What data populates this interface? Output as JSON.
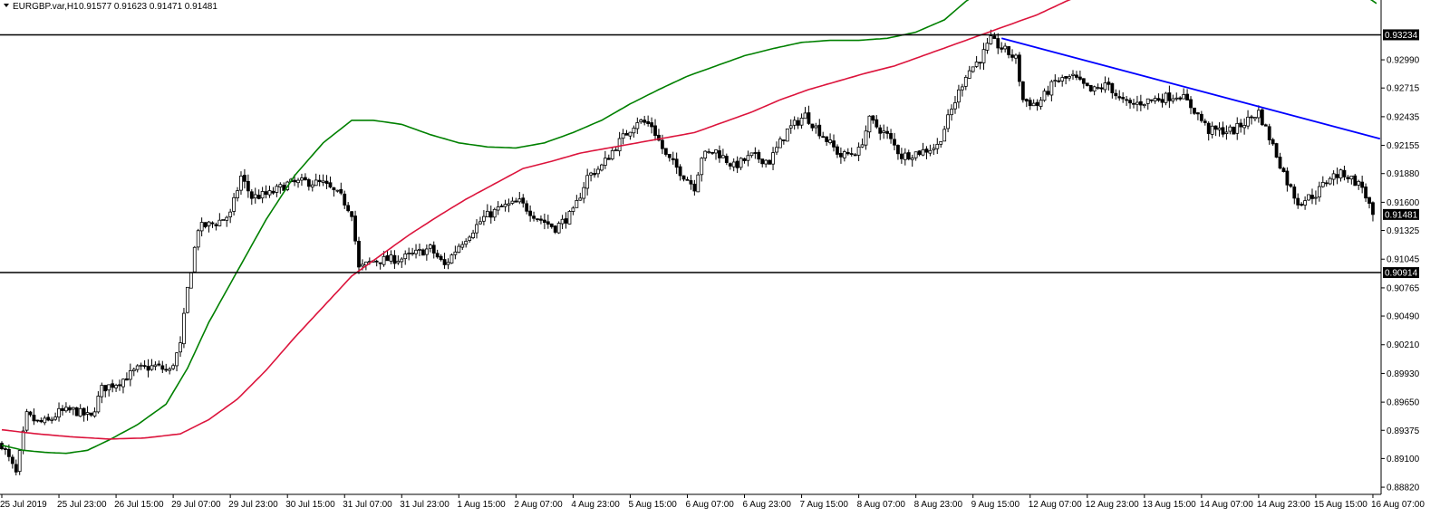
{
  "header": {
    "symbol_label": "EURGBP.var,H1",
    "ohlc_values": "0.91577 0.91623 0.91471 0.91481"
  },
  "colors": {
    "background": "#ffffff",
    "bull_candle": "#ffffff",
    "bear_candle": "#000000",
    "ma_fast": "#008000",
    "ma_slow": "#dc143c",
    "trendline": "#0000ff",
    "hline": "#000000"
  },
  "chart_data": {
    "type": "candlestick",
    "y_ticks": [
      0.8882,
      0.891,
      0.89375,
      0.8965,
      0.8993,
      0.9021,
      0.9049,
      0.90765,
      0.91045,
      0.91325,
      0.916,
      0.9188,
      0.92155,
      0.92435,
      0.92715,
      0.9299
    ],
    "y_tick_labels": [
      "0.88820",
      "0.89100",
      "0.89375",
      "0.89650",
      "0.89930",
      "0.90210",
      "0.90490",
      "0.90765",
      "0.91045",
      "0.91325",
      "0.91600",
      "0.91880",
      "0.92155",
      "0.92435",
      "0.92715",
      "0.92990"
    ],
    "ylim": [
      0.8875,
      0.9345
    ],
    "x_ticks": [
      "25 Jul 2019",
      "25 Jul 23:00",
      "26 Jul 15:00",
      "29 Jul 07:00",
      "29 Jul 23:00",
      "30 Jul 15:00",
      "31 Jul 07:00",
      "31 Jul 23:00",
      "1 Aug 15:00",
      "2 Aug 07:00",
      "4 Aug 23:00",
      "5 Aug 15:00",
      "6 Aug 07:00",
      "6 Aug 23:00",
      "7 Aug 15:00",
      "8 Aug 07:00",
      "8 Aug 23:00",
      "9 Aug 15:00",
      "12 Aug 07:00",
      "12 Aug 23:00",
      "13 Aug 15:00",
      "14 Aug 07:00",
      "14 Aug 23:00",
      "15 Aug 15:00",
      "16 Aug 07:00"
    ],
    "x_tick_index": [
      0,
      16,
      32,
      48,
      64,
      80,
      96,
      112,
      128,
      144,
      160,
      176,
      192,
      208,
      224,
      240,
      256,
      272,
      288,
      304,
      320,
      336,
      352,
      368,
      384
    ],
    "path_anchors": [
      [
        0,
        0.8924
      ],
      [
        4,
        0.8895
      ],
      [
        7,
        0.8952
      ],
      [
        10,
        0.8945
      ],
      [
        13,
        0.8946
      ],
      [
        16,
        0.8955
      ],
      [
        20,
        0.8957
      ],
      [
        25,
        0.895
      ],
      [
        28,
        0.8978
      ],
      [
        33,
        0.8985
      ],
      [
        38,
        0.8997
      ],
      [
        43,
        0.9
      ],
      [
        47,
        0.8995
      ],
      [
        50,
        0.902
      ],
      [
        52,
        0.9075
      ],
      [
        55,
        0.9135
      ],
      [
        60,
        0.914
      ],
      [
        64,
        0.9148
      ],
      [
        67,
        0.9185
      ],
      [
        70,
        0.9165
      ],
      [
        75,
        0.9168
      ],
      [
        80,
        0.9178
      ],
      [
        85,
        0.918
      ],
      [
        90,
        0.9178
      ],
      [
        95,
        0.9165
      ],
      [
        98,
        0.915
      ],
      [
        100,
        0.9095
      ],
      [
        104,
        0.9103
      ],
      [
        112,
        0.9105
      ],
      [
        120,
        0.9115
      ],
      [
        124,
        0.9098
      ],
      [
        128,
        0.9118
      ],
      [
        135,
        0.9145
      ],
      [
        140,
        0.9155
      ],
      [
        145,
        0.916
      ],
      [
        150,
        0.9145
      ],
      [
        155,
        0.9135
      ],
      [
        160,
        0.915
      ],
      [
        164,
        0.9185
      ],
      [
        168,
        0.9195
      ],
      [
        172,
        0.9215
      ],
      [
        178,
        0.924
      ],
      [
        182,
        0.9235
      ],
      [
        186,
        0.9205
      ],
      [
        190,
        0.919
      ],
      [
        194,
        0.9175
      ],
      [
        196,
        0.9205
      ],
      [
        200,
        0.921
      ],
      [
        205,
        0.9195
      ],
      [
        210,
        0.9205
      ],
      [
        215,
        0.92
      ],
      [
        220,
        0.923
      ],
      [
        225,
        0.9245
      ],
      [
        230,
        0.9225
      ],
      [
        235,
        0.9205
      ],
      [
        240,
        0.921
      ],
      [
        243,
        0.924
      ],
      [
        248,
        0.9225
      ],
      [
        252,
        0.9205
      ],
      [
        258,
        0.921
      ],
      [
        262,
        0.9215
      ],
      [
        266,
        0.925
      ],
      [
        270,
        0.9285
      ],
      [
        274,
        0.93
      ],
      [
        277,
        0.9318
      ],
      [
        281,
        0.9308
      ],
      [
        284,
        0.93
      ],
      [
        286,
        0.926
      ],
      [
        290,
        0.9255
      ],
      [
        295,
        0.9278
      ],
      [
        300,
        0.9282
      ],
      [
        305,
        0.9268
      ],
      [
        310,
        0.9275
      ],
      [
        313,
        0.926
      ],
      [
        316,
        0.9255
      ],
      [
        322,
        0.926
      ],
      [
        330,
        0.9265
      ],
      [
        334,
        0.925
      ],
      [
        338,
        0.923
      ],
      [
        345,
        0.923
      ],
      [
        352,
        0.9248
      ],
      [
        356,
        0.9215
      ],
      [
        360,
        0.918
      ],
      [
        363,
        0.916
      ],
      [
        368,
        0.9168
      ],
      [
        372,
        0.9185
      ],
      [
        376,
        0.9188
      ],
      [
        381,
        0.9175
      ],
      [
        384,
        0.91481
      ]
    ],
    "n_bars": 386,
    "noise_seed": 7,
    "moving_averages": [
      {
        "role": "ma_fast",
        "anchors": [
          [
            0,
            0.8945
          ],
          [
            6,
            0.894
          ],
          [
            12,
            0.8938
          ],
          [
            18,
            0.8937
          ],
          [
            24,
            0.894
          ],
          [
            30,
            0.895
          ],
          [
            38,
            0.8965
          ],
          [
            46,
            0.8985
          ],
          [
            52,
            0.902
          ],
          [
            58,
            0.9065
          ],
          [
            66,
            0.9115
          ],
          [
            74,
            0.9165
          ],
          [
            82,
            0.9208
          ],
          [
            90,
            0.924
          ],
          [
            98,
            0.9262
          ],
          [
            104,
            0.9262
          ],
          [
            112,
            0.9258
          ],
          [
            120,
            0.9248
          ],
          [
            128,
            0.924
          ],
          [
            136,
            0.9236
          ],
          [
            144,
            0.9235
          ],
          [
            152,
            0.924
          ],
          [
            160,
            0.925
          ],
          [
            168,
            0.9262
          ],
          [
            176,
            0.9278
          ],
          [
            184,
            0.9292
          ],
          [
            192,
            0.9305
          ],
          [
            200,
            0.9315
          ],
          [
            208,
            0.9325
          ],
          [
            216,
            0.9332
          ],
          [
            224,
            0.9338
          ],
          [
            232,
            0.934
          ],
          [
            240,
            0.934
          ],
          [
            248,
            0.9342
          ],
          [
            256,
            0.9348
          ],
          [
            264,
            0.936
          ],
          [
            270,
            0.9378
          ],
          [
            276,
            0.9392
          ],
          [
            282,
            0.9406
          ],
          [
            288,
            0.9418
          ],
          [
            296,
            0.943
          ],
          [
            304,
            0.944
          ],
          [
            310,
            0.9448
          ],
          [
            318,
            0.945
          ],
          [
            326,
            0.945
          ],
          [
            334,
            0.9445
          ],
          [
            342,
            0.944
          ],
          [
            350,
            0.9432
          ],
          [
            358,
            0.9426
          ],
          [
            366,
            0.9416
          ],
          [
            374,
            0.9402
          ],
          [
            380,
            0.9388
          ],
          [
            385,
            0.9376
          ]
        ]
      },
      {
        "role": "ma_slow",
        "anchors": [
          [
            0,
            0.896
          ],
          [
            10,
            0.8956
          ],
          [
            20,
            0.8953
          ],
          [
            30,
            0.8951
          ],
          [
            40,
            0.8952
          ],
          [
            50,
            0.8956
          ],
          [
            58,
            0.897
          ],
          [
            66,
            0.899
          ],
          [
            74,
            0.9018
          ],
          [
            82,
            0.905
          ],
          [
            90,
            0.908
          ],
          [
            98,
            0.911
          ],
          [
            106,
            0.913
          ],
          [
            114,
            0.915
          ],
          [
            122,
            0.9168
          ],
          [
            130,
            0.9185
          ],
          [
            138,
            0.92
          ],
          [
            146,
            0.9215
          ],
          [
            154,
            0.9222
          ],
          [
            162,
            0.923
          ],
          [
            170,
            0.9235
          ],
          [
            178,
            0.924
          ],
          [
            186,
            0.9245
          ],
          [
            194,
            0.925
          ],
          [
            202,
            0.926
          ],
          [
            210,
            0.927
          ],
          [
            218,
            0.9282
          ],
          [
            226,
            0.9292
          ],
          [
            234,
            0.93
          ],
          [
            242,
            0.9308
          ],
          [
            250,
            0.9315
          ],
          [
            258,
            0.9325
          ],
          [
            266,
            0.9335
          ],
          [
            274,
            0.9345
          ],
          [
            282,
            0.9355
          ],
          [
            290,
            0.9365
          ],
          [
            298,
            0.9378
          ],
          [
            306,
            0.939
          ],
          [
            314,
            0.9398
          ],
          [
            322,
            0.9405
          ],
          [
            330,
            0.941
          ],
          [
            338,
            0.942
          ],
          [
            346,
            0.9428
          ],
          [
            354,
            0.9432
          ],
          [
            362,
            0.9432
          ],
          [
            370,
            0.9428
          ],
          [
            378,
            0.9418
          ],
          [
            385,
            0.9408
          ]
        ]
      }
    ],
    "trendline": {
      "start": [
        280,
        0.932
      ],
      "end": [
        386,
        0.9222
      ]
    },
    "hlines": [
      {
        "value": 0.93234,
        "label": "0.93234"
      },
      {
        "value": 0.90914,
        "label": "0.90914"
      }
    ],
    "current_price": {
      "value": 0.91481,
      "label": "0.91481"
    }
  }
}
